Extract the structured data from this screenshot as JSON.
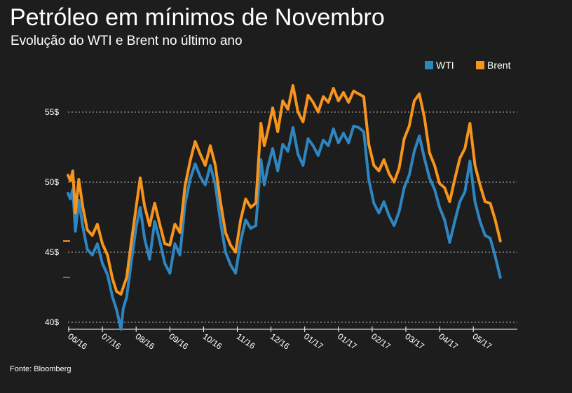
{
  "header": {
    "title": "Petróleo em mínimos de Novembro",
    "subtitle": "Evolução do WTI e Brent no último ano"
  },
  "footer": {
    "source": "Fonte: Bloomberg"
  },
  "colors": {
    "wti": "#2e86c1",
    "brent": "#f7941d",
    "background": "#1d1d1d",
    "grid": "#bbbbbb"
  },
  "chart_data": {
    "type": "line",
    "title": "Petróleo em mínimos de Novembro",
    "subtitle": "Evolução do WTI e Brent no último ano",
    "xlabel": "",
    "ylabel": "",
    "ylim": [
      40,
      56
    ],
    "grid": true,
    "legend": "top-right",
    "y_ticks": [
      {
        "value": 55,
        "label": "55$"
      },
      {
        "value": 50,
        "label": "50$"
      },
      {
        "value": 45,
        "label": "45$"
      },
      {
        "value": 40,
        "label": "40$"
      }
    ],
    "x_ticks": [
      "06/16",
      "07/16",
      "08/16",
      "09/16",
      "10/16",
      "11/16",
      "12/16",
      "01/17",
      "01/17",
      "02/17",
      "03/17",
      "04/17",
      "05/17"
    ],
    "x_tick_positions": [
      1,
      2,
      3,
      4,
      5,
      6,
      7,
      8,
      9,
      10,
      11,
      12,
      13
    ],
    "xlim": [
      1,
      13.85
    ],
    "last_values": {
      "wti": 43.2,
      "brent": 45.8
    },
    "series": [
      {
        "name": "WTI",
        "color": "#2e86c1",
        "x": [
          0.98,
          1.05,
          1.12,
          1.2,
          1.3,
          1.42,
          1.55,
          1.7,
          1.85,
          2.0,
          2.15,
          2.3,
          2.42,
          2.55,
          2.62,
          2.72,
          2.85,
          3.0,
          3.12,
          3.25,
          3.4,
          3.55,
          3.7,
          3.85,
          4.0,
          4.15,
          4.3,
          4.45,
          4.6,
          4.75,
          4.9,
          5.05,
          5.2,
          5.35,
          5.5,
          5.65,
          5.8,
          5.95,
          6.1,
          6.25,
          6.4,
          6.55,
          6.7,
          6.8,
          6.9,
          7.05,
          7.2,
          7.35,
          7.5,
          7.65,
          7.8,
          7.95,
          8.1,
          8.25,
          8.4,
          8.55,
          8.7,
          8.85,
          9.0,
          9.15,
          9.3,
          9.45,
          9.6,
          9.75,
          9.9,
          10.05,
          10.2,
          10.35,
          10.5,
          10.65,
          10.8,
          10.95,
          11.1,
          11.25,
          11.4,
          11.55,
          11.7,
          11.85,
          12.0,
          12.15,
          12.3,
          12.45,
          12.6,
          12.75,
          12.9,
          13.05,
          13.2,
          13.35,
          13.5,
          13.65,
          13.8
        ],
        "values": [
          49.2,
          48.8,
          49.5,
          46.5,
          48.7,
          46.8,
          45.2,
          44.8,
          45.6,
          44.2,
          43.4,
          41.8,
          40.9,
          39.5,
          41.0,
          41.8,
          44.2,
          46.8,
          48.2,
          46.0,
          44.5,
          47.2,
          45.8,
          44.2,
          43.5,
          45.6,
          44.8,
          48.4,
          50.2,
          51.3,
          50.4,
          49.8,
          51.2,
          49.8,
          47.2,
          45.0,
          44.1,
          43.5,
          45.8,
          47.3,
          46.7,
          46.9,
          51.6,
          49.8,
          51.0,
          52.4,
          50.8,
          52.7,
          52.2,
          53.9,
          52.0,
          51.2,
          53.1,
          52.6,
          51.9,
          53.0,
          52.6,
          53.8,
          52.8,
          53.5,
          52.8,
          54.0,
          53.9,
          53.6,
          50.2,
          48.5,
          47.8,
          48.6,
          47.6,
          46.9,
          47.9,
          49.6,
          50.5,
          52.2,
          53.3,
          51.7,
          50.3,
          49.5,
          48.2,
          47.3,
          45.7,
          47.2,
          48.6,
          49.3,
          51.5,
          48.6,
          47.2,
          46.2,
          46.0,
          44.7,
          43.2
        ]
      },
      {
        "name": "Brent",
        "color": "#f7941d",
        "x": [
          0.98,
          1.05,
          1.12,
          1.2,
          1.3,
          1.42,
          1.55,
          1.7,
          1.85,
          2.0,
          2.15,
          2.3,
          2.42,
          2.55,
          2.62,
          2.72,
          2.85,
          3.0,
          3.12,
          3.25,
          3.4,
          3.55,
          3.7,
          3.85,
          4.0,
          4.15,
          4.3,
          4.45,
          4.6,
          4.75,
          4.9,
          5.05,
          5.2,
          5.35,
          5.5,
          5.65,
          5.8,
          5.95,
          6.1,
          6.25,
          6.4,
          6.55,
          6.7,
          6.8,
          6.9,
          7.05,
          7.2,
          7.35,
          7.5,
          7.65,
          7.8,
          7.95,
          8.1,
          8.25,
          8.4,
          8.55,
          8.7,
          8.85,
          9.0,
          9.15,
          9.3,
          9.45,
          9.6,
          9.75,
          9.9,
          10.05,
          10.2,
          10.35,
          10.5,
          10.65,
          10.8,
          10.95,
          11.1,
          11.25,
          11.4,
          11.55,
          11.7,
          11.85,
          12.0,
          12.15,
          12.3,
          12.45,
          12.6,
          12.75,
          12.9,
          13.05,
          13.2,
          13.35,
          13.5,
          13.65,
          13.8
        ],
        "values": [
          50.5,
          50.1,
          50.8,
          47.8,
          50.2,
          48.2,
          46.6,
          46.2,
          47.0,
          45.6,
          44.8,
          43.1,
          42.2,
          42.0,
          42.5,
          43.2,
          45.6,
          48.2,
          50.3,
          48.3,
          46.9,
          48.5,
          47.0,
          45.6,
          45.5,
          47.0,
          46.4,
          49.7,
          51.5,
          52.9,
          52.0,
          51.2,
          52.6,
          51.2,
          48.6,
          46.4,
          45.5,
          45.0,
          47.3,
          48.8,
          48.2,
          48.5,
          54.2,
          52.6,
          53.6,
          55.3,
          53.6,
          55.8,
          55.2,
          56.9,
          55.0,
          54.3,
          56.2,
          55.7,
          55.0,
          56.1,
          55.7,
          56.7,
          55.8,
          56.4,
          55.7,
          56.5,
          56.3,
          56.1,
          52.7,
          51.2,
          50.8,
          51.6,
          50.6,
          50.0,
          51.0,
          53.1,
          54.0,
          55.8,
          56.3,
          54.6,
          52.1,
          51.2,
          49.9,
          49.6,
          48.6,
          50.2,
          51.7,
          52.4,
          54.2,
          51.2,
          49.8,
          48.6,
          48.5,
          47.3,
          45.8
        ]
      }
    ]
  }
}
